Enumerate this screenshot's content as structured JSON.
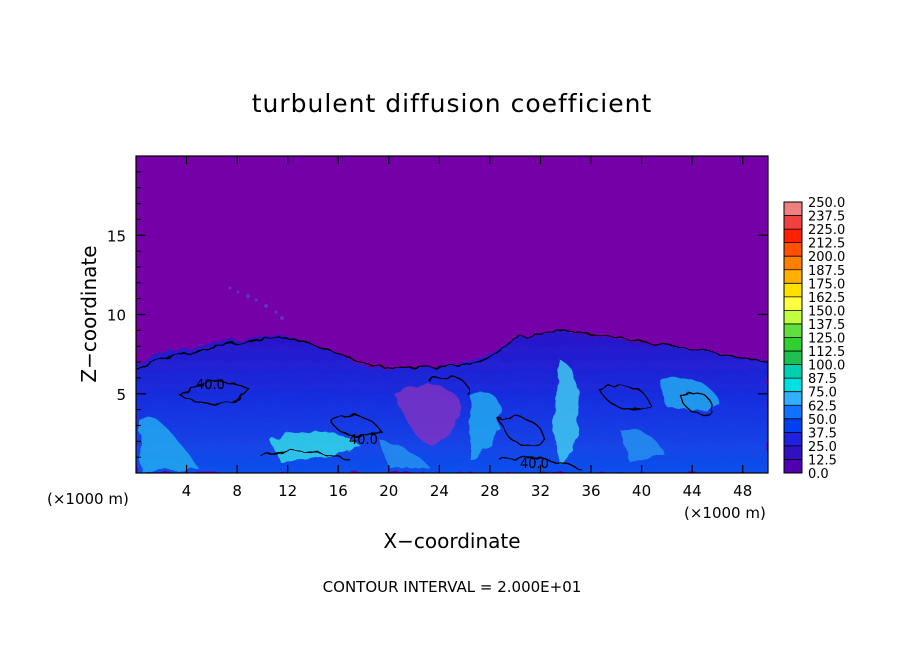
{
  "chart_data": {
    "type": "heatmap",
    "title": "turbulent diffusion coefficient",
    "xlabel": "X−coordinate",
    "ylabel": "Z−coordinate",
    "x_unit_left": "(×1000 m)",
    "x_unit_right": "(×1000 m)",
    "footer": "CONTOUR INTERVAL = 2.000E+01",
    "xlim": [
      0,
      50
    ],
    "ylim": [
      0,
      20
    ],
    "x_ticks": [
      4,
      8,
      12,
      16,
      20,
      24,
      28,
      32,
      36,
      40,
      44,
      48
    ],
    "y_ticks": [
      5,
      10,
      15
    ],
    "colorbar": {
      "labels": [
        "250.0",
        "237.5",
        "225.0",
        "212.5",
        "200.0",
        "187.5",
        "175.0",
        "162.5",
        "150.0",
        "137.5",
        "125.0",
        "112.5",
        "100.0",
        "87.5",
        "75.0",
        "62.5",
        "50.0",
        "37.5",
        "25.0",
        "12.5",
        "0.0"
      ],
      "colors": [
        "#f08080",
        "#f04040",
        "#ff2000",
        "#ff5000",
        "#ff8000",
        "#ffb000",
        "#ffe000",
        "#ffff40",
        "#c0ff40",
        "#60e040",
        "#30d030",
        "#20c050",
        "#00d0b0",
        "#00e0e0",
        "#30b0ff",
        "#1070ff",
        "#0040f0",
        "#2020e0",
        "#3010c0",
        "#5000b0"
      ],
      "background_color": "#7500a8"
    },
    "contour_labels": [
      "40.0",
      "40.0",
      "40.0"
    ]
  }
}
